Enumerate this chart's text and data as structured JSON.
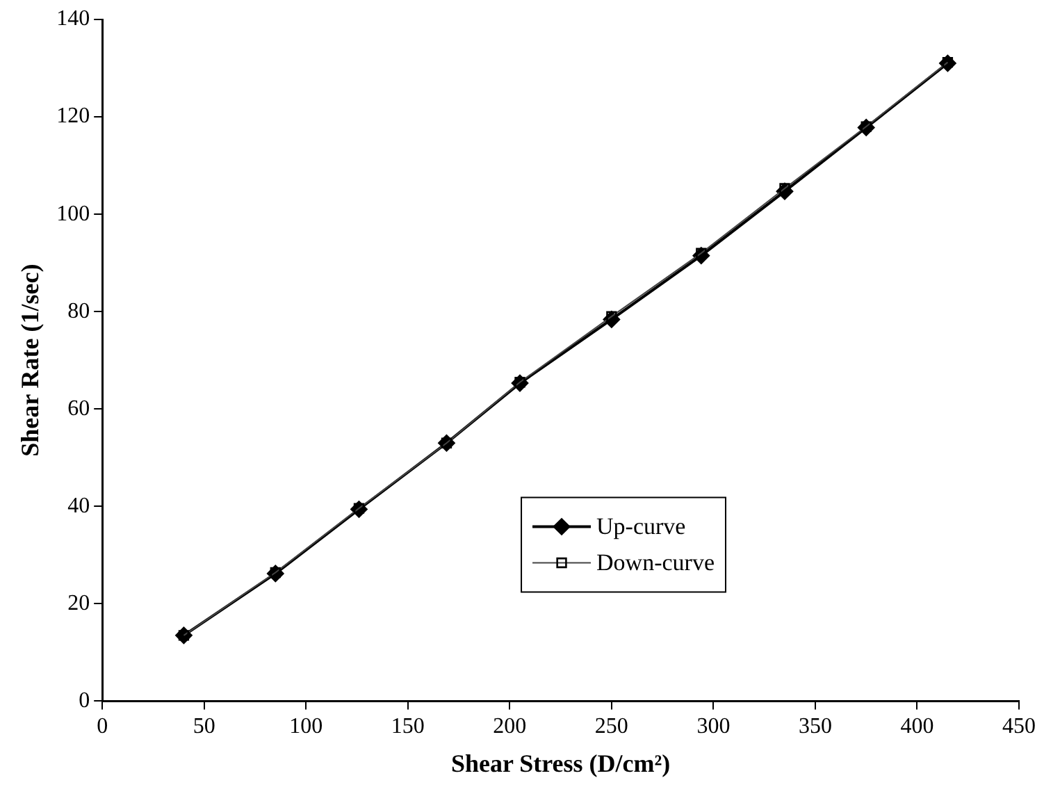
{
  "chart_data": {
    "type": "line",
    "xlabel": "Shear Stress (D/cm²)",
    "ylabel": "Shear Rate (1/sec)",
    "xlim": [
      0,
      450
    ],
    "xticks": [
      0,
      50,
      100,
      150,
      200,
      250,
      300,
      350,
      400,
      450
    ],
    "ylim": [
      0,
      140
    ],
    "yticks": [
      0,
      20,
      40,
      60,
      80,
      100,
      120,
      140
    ],
    "grid": false,
    "legend": "bottom right",
    "series": [
      {
        "name": "Up-curve",
        "color": "#000000",
        "marker": "diamond",
        "x": [
          40,
          85,
          126,
          169,
          205,
          250,
          294,
          335,
          375,
          415
        ],
        "values": [
          13.5,
          26.2,
          39.4,
          53,
          65.3,
          78.4,
          91.5,
          104.7,
          117.8,
          131
        ]
      },
      {
        "name": "Down-curve",
        "color": "#444444",
        "marker": "square",
        "x": [
          40,
          85,
          126,
          169,
          205,
          250,
          294,
          335,
          375,
          415
        ],
        "values": [
          13.5,
          26.4,
          39.6,
          53,
          65.5,
          79,
          92,
          105.3,
          118,
          131.2
        ]
      }
    ]
  }
}
